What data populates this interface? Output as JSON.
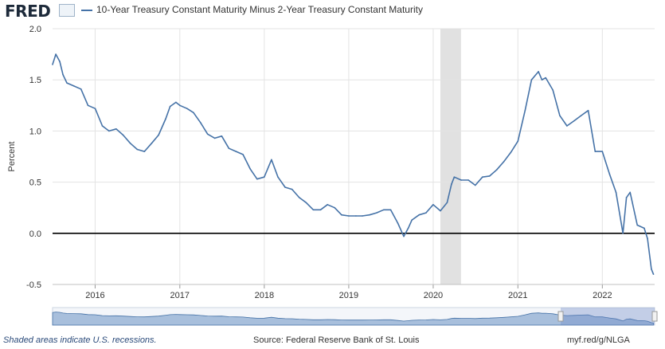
{
  "header": {
    "logo_text": "FRED",
    "title": "10-Year Treasury Constant Maturity Minus 2-Year Treasury Constant Maturity"
  },
  "footer": {
    "recession_note": "Shaded areas indicate U.S. recessions.",
    "source": "Source: Federal Reserve Bank of St. Louis",
    "short_url": "myf.red/g/NLGA"
  },
  "colors": {
    "series": "#4572a7",
    "recession": "#e1e1e1",
    "zero_line": "#000000",
    "grid": "#e3e3e3",
    "navigator_fill": "#a8bfdc"
  },
  "chart_data": {
    "type": "line",
    "title": "10-Year Treasury Constant Maturity Minus 2-Year Treasury Constant Maturity",
    "ylabel": "Percent",
    "xlabel": "",
    "xlim": [
      "2015-07-01",
      "2022-08-15"
    ],
    "ylim": [
      -0.5,
      2.0
    ],
    "yticks": [
      -0.5,
      0.0,
      0.5,
      1.0,
      1.5,
      2.0
    ],
    "ytick_labels": [
      "-0.5",
      "0.0",
      "0.5",
      "1.0",
      "1.5",
      "2.0"
    ],
    "xtick_labels": [
      "2016",
      "2017",
      "2018",
      "2019",
      "2020",
      "2021",
      "2022"
    ],
    "xticks": [
      "2016-01-01",
      "2017-01-01",
      "2018-01-01",
      "2019-01-01",
      "2020-01-01",
      "2021-01-01",
      "2022-01-01"
    ],
    "grid": true,
    "recessions": [
      {
        "start": "2020-02-01",
        "end": "2020-04-30"
      }
    ],
    "reference_line": 0.0,
    "series": [
      {
        "name": "10-Year Treasury Constant Maturity Minus 2-Year Treasury Constant Maturity",
        "x": [
          "2015-07-01",
          "2015-07-15",
          "2015-08-01",
          "2015-08-15",
          "2015-09-01",
          "2015-10-01",
          "2015-11-01",
          "2015-12-01",
          "2016-01-01",
          "2016-02-01",
          "2016-03-01",
          "2016-04-01",
          "2016-05-01",
          "2016-06-01",
          "2016-07-01",
          "2016-08-01",
          "2016-09-01",
          "2016-10-01",
          "2016-11-01",
          "2016-11-20",
          "2016-12-15",
          "2017-01-01",
          "2017-02-01",
          "2017-03-01",
          "2017-04-01",
          "2017-05-01",
          "2017-06-01",
          "2017-07-01",
          "2017-08-01",
          "2017-09-01",
          "2017-10-01",
          "2017-11-01",
          "2017-12-01",
          "2018-01-01",
          "2018-02-01",
          "2018-03-01",
          "2018-04-01",
          "2018-05-01",
          "2018-06-01",
          "2018-07-01",
          "2018-08-01",
          "2018-09-01",
          "2018-10-01",
          "2018-11-01",
          "2018-12-01",
          "2019-01-01",
          "2019-02-01",
          "2019-03-01",
          "2019-04-01",
          "2019-05-01",
          "2019-06-01",
          "2019-07-01",
          "2019-08-01",
          "2019-08-27",
          "2019-09-15",
          "2019-10-01",
          "2019-11-01",
          "2019-12-01",
          "2020-01-01",
          "2020-02-01",
          "2020-03-01",
          "2020-03-20",
          "2020-04-01",
          "2020-05-01",
          "2020-06-01",
          "2020-07-01",
          "2020-08-01",
          "2020-09-01",
          "2020-10-01",
          "2020-11-01",
          "2020-12-01",
          "2021-01-01",
          "2021-02-01",
          "2021-03-01",
          "2021-03-31",
          "2021-04-15",
          "2021-05-01",
          "2021-06-01",
          "2021-07-01",
          "2021-08-01",
          "2021-09-01",
          "2021-10-01",
          "2021-11-01",
          "2021-12-01",
          "2022-01-01",
          "2022-02-01",
          "2022-03-01",
          "2022-03-31",
          "2022-04-15",
          "2022-05-01",
          "2022-06-01",
          "2022-07-01",
          "2022-07-15",
          "2022-08-01",
          "2022-08-10"
        ],
        "values": [
          1.65,
          1.75,
          1.68,
          1.55,
          1.47,
          1.44,
          1.41,
          1.25,
          1.22,
          1.05,
          1.0,
          1.02,
          0.96,
          0.88,
          0.82,
          0.8,
          0.88,
          0.96,
          1.12,
          1.24,
          1.28,
          1.25,
          1.22,
          1.18,
          1.08,
          0.97,
          0.93,
          0.95,
          0.83,
          0.8,
          0.77,
          0.63,
          0.53,
          0.55,
          0.72,
          0.55,
          0.45,
          0.43,
          0.35,
          0.3,
          0.23,
          0.23,
          0.28,
          0.25,
          0.18,
          0.17,
          0.17,
          0.17,
          0.18,
          0.2,
          0.23,
          0.23,
          0.1,
          -0.03,
          0.05,
          0.13,
          0.18,
          0.2,
          0.28,
          0.22,
          0.3,
          0.48,
          0.55,
          0.52,
          0.52,
          0.47,
          0.55,
          0.56,
          0.62,
          0.7,
          0.79,
          0.9,
          1.2,
          1.5,
          1.58,
          1.5,
          1.52,
          1.4,
          1.15,
          1.05,
          1.1,
          1.15,
          1.2,
          0.8,
          0.8,
          0.58,
          0.4,
          0.0,
          0.35,
          0.4,
          0.08,
          0.05,
          -0.05,
          -0.35,
          -0.4
        ]
      }
    ]
  }
}
